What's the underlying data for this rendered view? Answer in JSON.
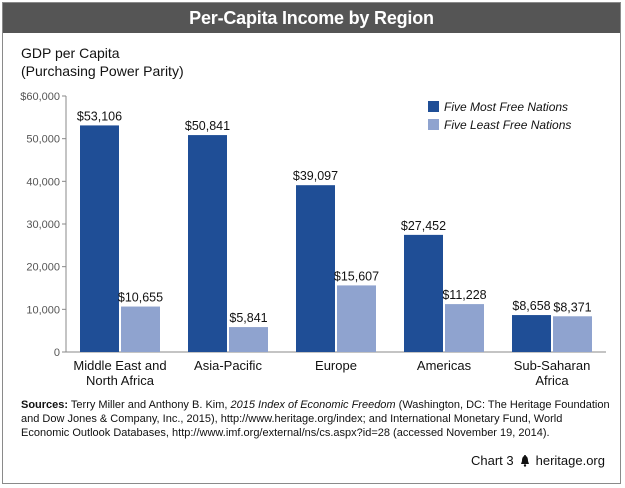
{
  "title": "Per-Capita Income by Region",
  "y_axis_title": [
    "GDP per Capita",
    "(Purchasing Power Parity)"
  ],
  "sources": {
    "prefix": "Sources:",
    "text1": " Terry Miller and Anthony B. Kim, ",
    "italic": "2015 Index of Economic Freedom",
    "text2": " (Washington, DC: The Heritage Foundation and Dow Jones & Company, Inc., 2015), http://www.heritage.org/index; and International Monetary Fund, World Economic Outlook Databases, http://www.imf.org/external/ns/cs.aspx?id=28 (accessed November 19, 2014)."
  },
  "footer": {
    "chart_number": "Chart 3",
    "site": "heritage.org"
  },
  "colors": {
    "title_bar": "#555555",
    "most_free": "#1f4e96",
    "least_free": "#8fa3cf"
  },
  "chart_data": {
    "type": "bar",
    "categories": [
      "Middle East and North Africa",
      "Asia-Pacific",
      "Europe",
      "Americas",
      "Sub-Saharan Africa"
    ],
    "category_label_lines": [
      [
        "Middle East and",
        "North Africa"
      ],
      [
        "Asia-Pacific"
      ],
      [
        "Europe"
      ],
      [
        "Americas"
      ],
      [
        "Sub-Saharan",
        "Africa"
      ]
    ],
    "series": [
      {
        "name": "Five Most Free Nations",
        "values": [
          53106,
          50841,
          39097,
          27452,
          8658
        ],
        "labels": [
          "$53,106",
          "$50,841",
          "$39,097",
          "$27,452",
          "$8,658"
        ]
      },
      {
        "name": "Five Least Free Nations",
        "values": [
          10655,
          5841,
          15607,
          11228,
          8371
        ],
        "labels": [
          "$10,655",
          "$5,841",
          "$15,607",
          "$11,228",
          "$8,371"
        ]
      }
    ],
    "ylim": [
      0,
      60000
    ],
    "y_ticks": [
      0,
      10000,
      20000,
      30000,
      40000,
      50000,
      60000
    ],
    "y_tick_labels": [
      "0",
      "10,000",
      "20,000",
      "30,000",
      "40,000",
      "50,000",
      "$60,000"
    ],
    "legend_position": "top-right",
    "grid": false
  }
}
